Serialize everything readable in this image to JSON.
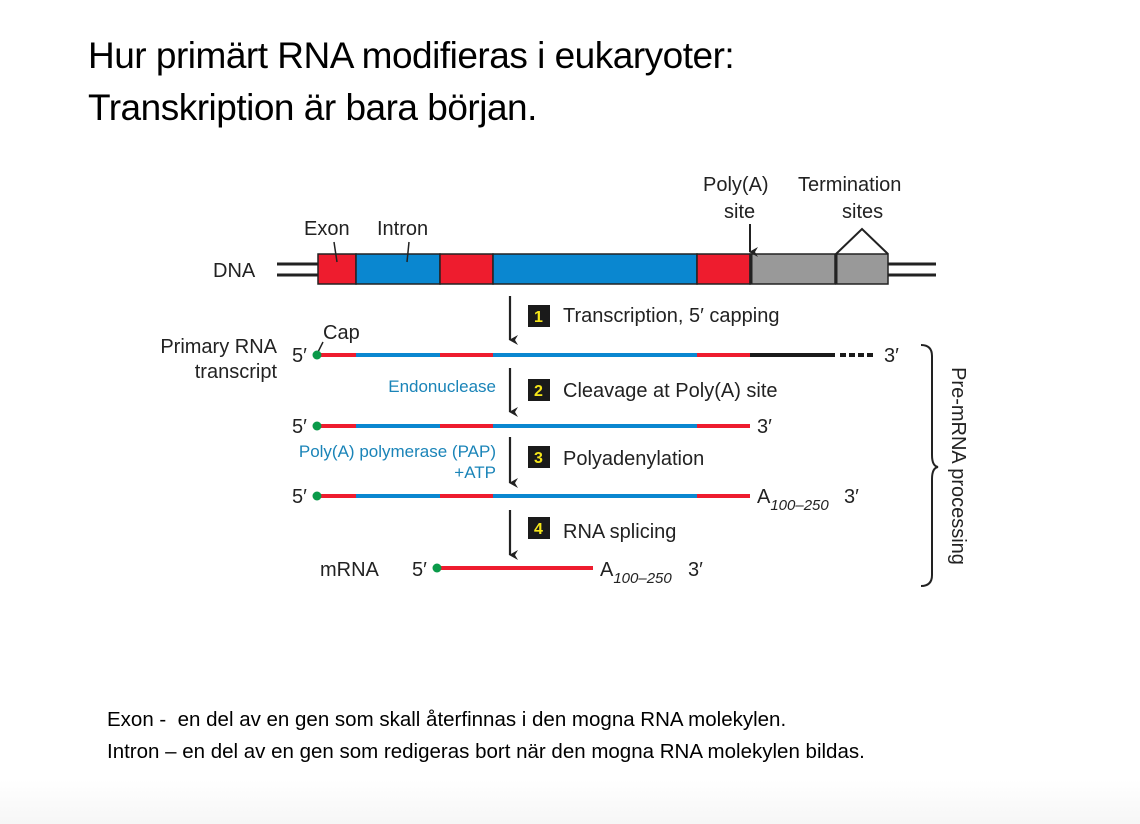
{
  "title": {
    "line1": "Hur primärt RNA modifieras i eukaryoter:",
    "line2": "Transkription är bara början."
  },
  "diagram": {
    "dna_label": "DNA",
    "exon_label": "Exon",
    "intron_label": "Intron",
    "polya_site_label": [
      "Poly(A)",
      "site"
    ],
    "termination_sites_label": [
      "Termination",
      "sites"
    ],
    "primary_rna_label": [
      "Primary RNA",
      "transcript"
    ],
    "cap_label": "Cap",
    "five_prime": "5′",
    "three_prime": "3′",
    "poly_a_tail": {
      "base": "A",
      "subscript": "100–250"
    },
    "mrna_label": "mRNA",
    "enzymes": {
      "endonuclease": "Endonuclease",
      "pap": "Poly(A) polymerase (PAP)",
      "atp": "+ATP"
    },
    "steps": [
      {
        "number": "1",
        "label": "Transcription, 5′ capping"
      },
      {
        "number": "2",
        "label": "Cleavage at Poly(A) site"
      },
      {
        "number": "3",
        "label": "Polyadenylation"
      },
      {
        "number": "4",
        "label": "RNA splicing"
      }
    ],
    "bracket_label": "Pre-mRNA processing",
    "colors": {
      "exon": "#ee1c2e",
      "intron": "#0a87d0",
      "flank": "#999999",
      "cap": "#0a9a4a"
    }
  },
  "definitions": [
    "Exon -  en del av en gen som skall återfinnas i den mogna RNA molekylen.",
    "Intron – en del av en gen som redigeras bort när den mogna RNA molekylen bildas."
  ]
}
